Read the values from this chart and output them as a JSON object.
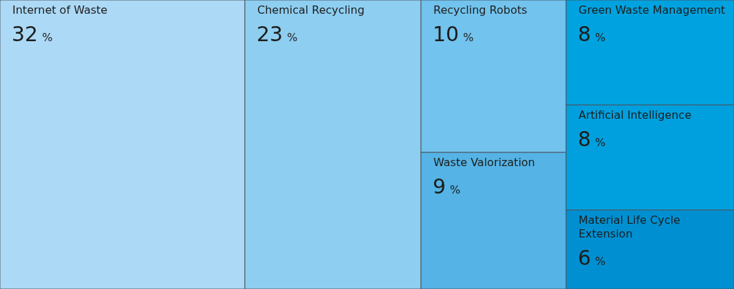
{
  "chart_data": {
    "type": "other",
    "categories": [
      "Internet of Waste",
      "Chemical Recycling",
      "Recycling Robots",
      "Waste Valorization",
      "Green Waste Management",
      "Artificial Intelligence",
      "Material Life Cycle Extension"
    ],
    "values": [
      32,
      23,
      10,
      9,
      8,
      8,
      6
    ],
    "value_labels": [
      "32 %",
      "23 %",
      "10 %",
      "9 %",
      "8 %",
      "8 %",
      "6 %"
    ],
    "colors": [
      "#acd9f6",
      "#8ecef1",
      "#72c3ee",
      "#55b3e5",
      "#00a2df",
      "#00a0de",
      "#0090d2"
    ]
  }
}
